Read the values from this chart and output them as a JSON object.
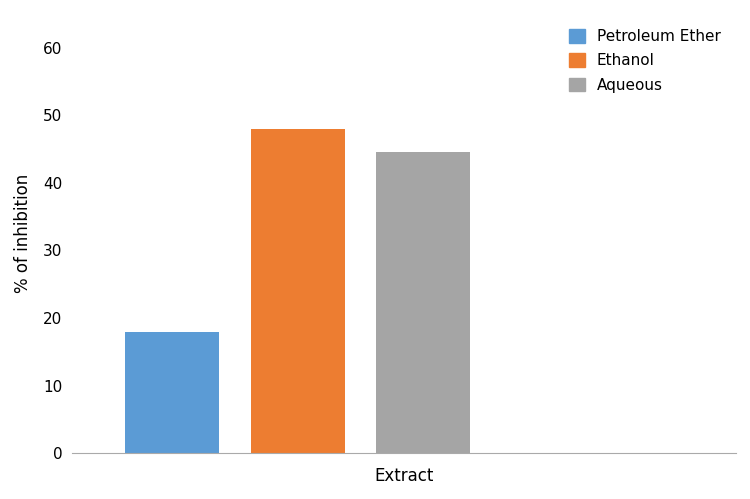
{
  "categories": [
    "Petroleum Ether",
    "Ethanol",
    "Aqueous"
  ],
  "values": [
    18.0,
    48.0,
    44.5
  ],
  "colors": [
    "#5B9BD5",
    "#ED7D31",
    "#A5A5A5"
  ],
  "xlabel": "Extract",
  "ylabel": "% of inhibition",
  "ylim": [
    0,
    65
  ],
  "yticks": [
    0,
    10,
    20,
    30,
    40,
    50,
    60
  ],
  "bar_width": 0.75,
  "background_color": "#FFFFFF",
  "legend_labels": [
    "Petroleum Ether",
    "Ethanol",
    "Aqueous"
  ],
  "legend_colors": [
    "#5B9BD5",
    "#ED7D31",
    "#A5A5A5"
  ],
  "figsize": [
    7.5,
    4.99
  ],
  "dpi": 100
}
